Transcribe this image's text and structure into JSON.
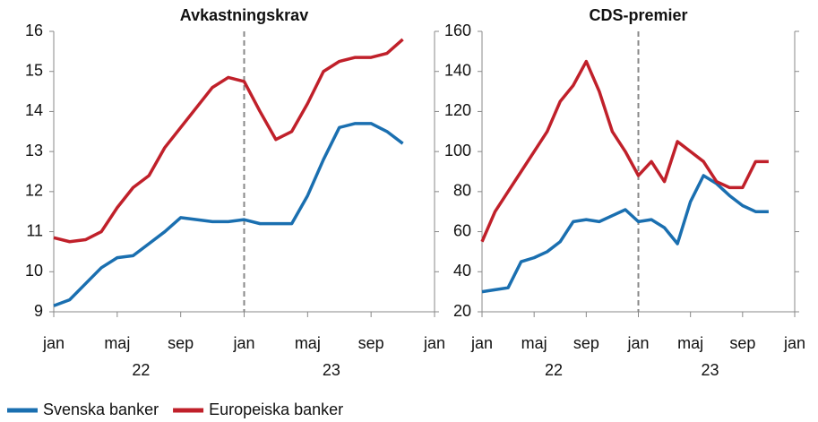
{
  "chart_data": [
    {
      "type": "line",
      "title": "Avkastningskrav",
      "x": [
        "2022-01",
        "2022-02",
        "2022-03",
        "2022-04",
        "2022-05",
        "2022-06",
        "2022-07",
        "2022-08",
        "2022-09",
        "2022-10",
        "2022-11",
        "2022-12",
        "2023-01",
        "2023-02",
        "2023-03",
        "2023-04",
        "2023-05",
        "2023-06",
        "2023-07",
        "2023-08",
        "2023-09",
        "2023-10",
        "2023-11"
      ],
      "series": [
        {
          "name": "Svenska banker",
          "color": "#1a6fb0",
          "values": [
            9.15,
            9.3,
            9.7,
            10.1,
            10.35,
            10.4,
            10.7,
            11.0,
            11.35,
            11.3,
            11.25,
            11.25,
            11.3,
            11.2,
            11.2,
            11.2,
            11.9,
            12.8,
            13.6,
            13.7,
            13.7,
            13.5,
            13.2
          ]
        },
        {
          "name": "Europeiska banker",
          "color": "#c0202a",
          "values": [
            10.85,
            10.75,
            10.8,
            11.0,
            11.6,
            12.1,
            12.4,
            13.1,
            13.6,
            14.1,
            14.6,
            14.85,
            14.75,
            14.0,
            13.3,
            13.5,
            14.2,
            15.0,
            15.25,
            15.35,
            15.35,
            15.45,
            15.8
          ]
        }
      ],
      "xlim": [
        "2022-01",
        "2024-01"
      ],
      "xticks": [
        {
          "value": "2022-01",
          "label": "jan"
        },
        {
          "value": "2022-05",
          "label": "maj"
        },
        {
          "value": "2022-09",
          "label": "sep"
        },
        {
          "value": "2023-01",
          "label": "jan"
        },
        {
          "value": "2023-05",
          "label": "maj"
        },
        {
          "value": "2023-09",
          "label": "sep"
        },
        {
          "value": "2024-01",
          "label": "jan"
        }
      ],
      "year_labels": [
        {
          "value": "2022",
          "label": "22"
        },
        {
          "value": "2023",
          "label": "23"
        }
      ],
      "vline": "2023-01",
      "ylim": [
        9,
        16
      ],
      "yticks": [
        9,
        10,
        11,
        12,
        13,
        14,
        15,
        16
      ]
    },
    {
      "type": "line",
      "title": "CDS-premier",
      "x": [
        "2022-01",
        "2022-02",
        "2022-03",
        "2022-04",
        "2022-05",
        "2022-06",
        "2022-07",
        "2022-08",
        "2022-09",
        "2022-10",
        "2022-11",
        "2022-12",
        "2023-01",
        "2023-02",
        "2023-03",
        "2023-04",
        "2023-05",
        "2023-06",
        "2023-07",
        "2023-08",
        "2023-09",
        "2023-10",
        "2023-11"
      ],
      "series": [
        {
          "name": "Svenska banker",
          "color": "#1a6fb0",
          "values": [
            30,
            31,
            32,
            45,
            47,
            50,
            55,
            65,
            66,
            65,
            68,
            71,
            65,
            66,
            62,
            54,
            75,
            88,
            84,
            78,
            73,
            70,
            70
          ]
        },
        {
          "name": "Europeiska banker",
          "color": "#c0202a",
          "values": [
            55,
            70,
            80,
            90,
            100,
            110,
            125,
            133,
            145,
            130,
            110,
            100,
            88,
            95,
            85,
            105,
            100,
            95,
            85,
            82,
            82,
            95,
            95
          ]
        }
      ],
      "xlim": [
        "2022-01",
        "2024-01"
      ],
      "xticks": [
        {
          "value": "2022-01",
          "label": "jan"
        },
        {
          "value": "2022-05",
          "label": "maj"
        },
        {
          "value": "2022-09",
          "label": "sep"
        },
        {
          "value": "2023-01",
          "label": "jan"
        },
        {
          "value": "2023-05",
          "label": "maj"
        },
        {
          "value": "2023-09",
          "label": "sep"
        },
        {
          "value": "2024-01",
          "label": "jan"
        }
      ],
      "year_labels": [
        {
          "value": "2022",
          "label": "22"
        },
        {
          "value": "2023",
          "label": "23"
        }
      ],
      "vline": "2023-01",
      "ylim": [
        20,
        160
      ],
      "yticks": [
        20,
        40,
        60,
        80,
        100,
        120,
        140,
        160
      ]
    }
  ]
}
